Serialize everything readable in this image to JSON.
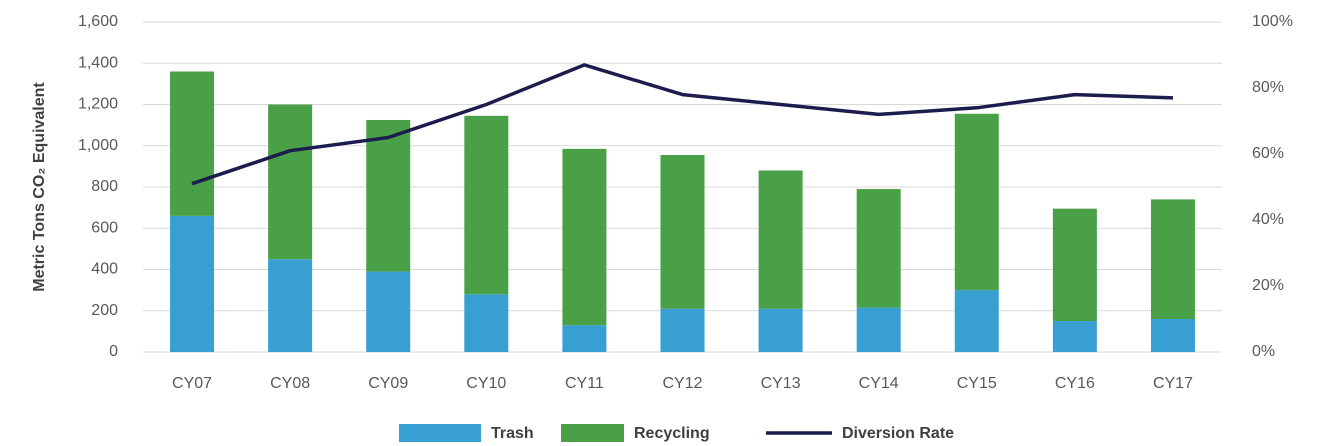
{
  "chart_data": {
    "type": "bar",
    "y_label": "Metric Tons CO₂ Equivalent",
    "categories": [
      "CY07",
      "CY08",
      "CY09",
      "CY10",
      "CY11",
      "CY12",
      "CY13",
      "CY14",
      "CY15",
      "CY16",
      "CY17"
    ],
    "series": [
      {
        "name": "Trash",
        "color": "#379fd2",
        "values": [
          660,
          450,
          390,
          280,
          130,
          210,
          210,
          215,
          300,
          150,
          160
        ]
      },
      {
        "name": "Recycling",
        "color": "#4aa046",
        "values": [
          700,
          750,
          735,
          865,
          855,
          745,
          670,
          575,
          855,
          545,
          580
        ]
      },
      {
        "name": "Diversion Rate",
        "type": "line",
        "axis": "y2",
        "color": "#1c1c4e",
        "values": [
          51,
          61,
          65,
          75,
          87,
          78,
          75,
          72,
          74,
          78,
          77
        ]
      }
    ],
    "stacked": true,
    "ylim": [
      0,
      1600
    ],
    "yticks": [
      0,
      200,
      400,
      600,
      800,
      {
        "value": 1000,
        "label": "1,000"
      },
      {
        "value": 1200,
        "label": "1,200"
      },
      {
        "value": 1400,
        "label": "1,400"
      },
      {
        "value": 1600,
        "label": "1,600"
      }
    ],
    "y2lim": [
      0,
      100
    ],
    "y2ticks": [
      {
        "value": 0,
        "label": "0%"
      },
      {
        "value": 20,
        "label": "20%"
      },
      {
        "value": 40,
        "label": "40%"
      },
      {
        "value": 60,
        "label": "60%"
      },
      {
        "value": 80,
        "label": "80%"
      },
      {
        "value": 100,
        "label": "100%"
      }
    ],
    "grid": true,
    "legend": "bottom"
  }
}
